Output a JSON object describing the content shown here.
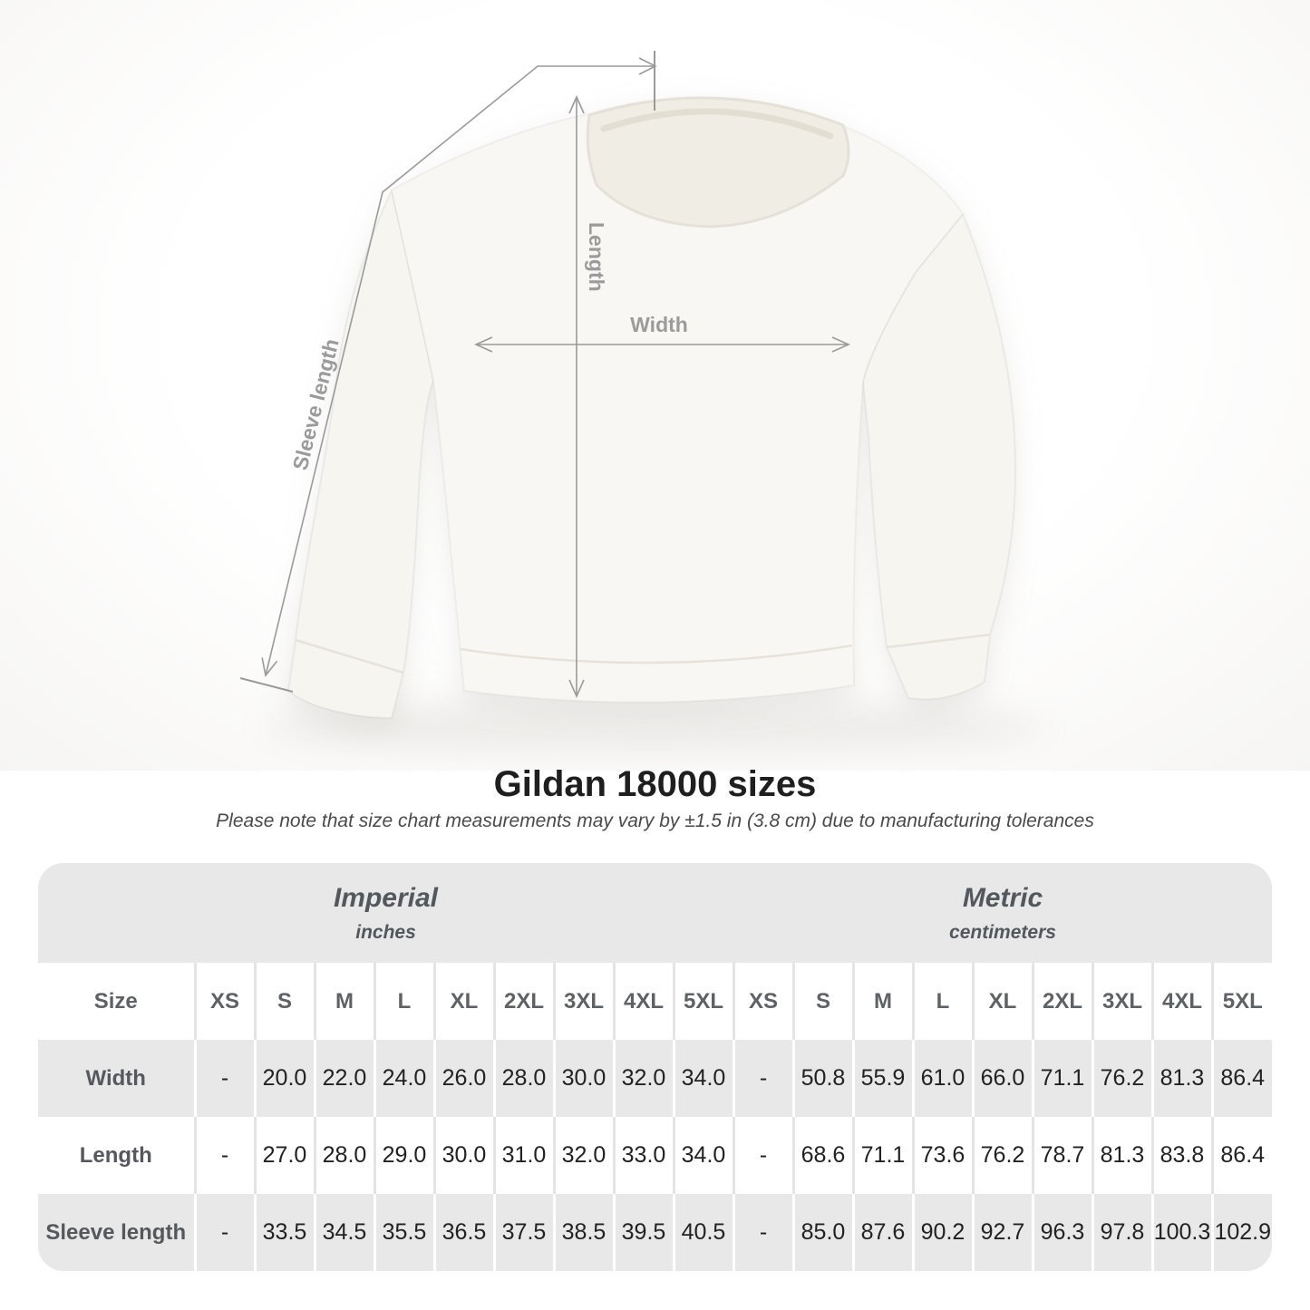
{
  "heading": {
    "title": "Gildan 18000 sizes",
    "note": "Please note that size chart measurements may vary by ±1.5 in (3.8 cm) due to manufacturing tolerances"
  },
  "diagram": {
    "labels": {
      "length": "Length",
      "width": "Width",
      "sleeve_length": "Sleeve length"
    },
    "line_color": "#9a9a9a",
    "label_color": "#9b9b9b",
    "garment": "white crewneck sweatshirt, front view"
  },
  "table": {
    "size_label": "Size",
    "unit_groups": [
      {
        "name": "Imperial",
        "unit": "inches"
      },
      {
        "name": "Metric",
        "unit": "centimeters"
      }
    ],
    "sizes": [
      "XS",
      "S",
      "M",
      "L",
      "XL",
      "2XL",
      "3XL",
      "4XL",
      "5XL"
    ],
    "rows": [
      {
        "label": "Width",
        "imperial": [
          "-",
          "20.0",
          "22.0",
          "24.0",
          "26.0",
          "28.0",
          "30.0",
          "32.0",
          "34.0"
        ],
        "metric": [
          "-",
          "50.8",
          "55.9",
          "61.0",
          "66.0",
          "71.1",
          "76.2",
          "81.3",
          "86.4"
        ]
      },
      {
        "label": "Length",
        "imperial": [
          "-",
          "27.0",
          "28.0",
          "29.0",
          "30.0",
          "31.0",
          "32.0",
          "33.0",
          "34.0"
        ],
        "metric": [
          "-",
          "68.6",
          "71.1",
          "73.6",
          "76.2",
          "78.7",
          "81.3",
          "83.8",
          "86.4"
        ]
      },
      {
        "label": "Sleeve length",
        "imperial": [
          "-",
          "33.5",
          "34.5",
          "35.5",
          "36.5",
          "37.5",
          "38.5",
          "39.5",
          "40.5"
        ],
        "metric": [
          "-",
          "85.0",
          "87.6",
          "90.2",
          "92.7",
          "96.3",
          "97.8",
          "100.3",
          "102.9"
        ]
      }
    ],
    "colors": {
      "band_bg": "#e9e8e8",
      "row_alt_bg": "#e9e8e8",
      "row_bg": "#ffffff",
      "divider_on_white": "#e4e4e4",
      "divider_on_gray": "#ffffff",
      "header_text": "#5e6266",
      "value_text": "#222222"
    }
  },
  "chart_data": {
    "type": "table",
    "title": "Gildan 18000 sizes",
    "note": "Please note that size chart measurements may vary by ±1.5 in (3.8 cm) due to manufacturing tolerances",
    "column_groups": [
      {
        "name": "Imperial",
        "unit": "inches"
      },
      {
        "name": "Metric",
        "unit": "centimeters"
      }
    ],
    "columns": [
      "XS",
      "S",
      "M",
      "L",
      "XL",
      "2XL",
      "3XL",
      "4XL",
      "5XL"
    ],
    "rows": [
      {
        "label": "Width",
        "imperial": [
          null,
          20.0,
          22.0,
          24.0,
          26.0,
          28.0,
          30.0,
          32.0,
          34.0
        ],
        "metric": [
          null,
          50.8,
          55.9,
          61.0,
          66.0,
          71.1,
          76.2,
          81.3,
          86.4
        ]
      },
      {
        "label": "Length",
        "imperial": [
          null,
          27.0,
          28.0,
          29.0,
          30.0,
          31.0,
          32.0,
          33.0,
          34.0
        ],
        "metric": [
          null,
          68.6,
          71.1,
          73.6,
          76.2,
          78.7,
          81.3,
          83.8,
          86.4
        ]
      },
      {
        "label": "Sleeve length",
        "imperial": [
          null,
          33.5,
          34.5,
          35.5,
          36.5,
          37.5,
          38.5,
          39.5,
          40.5
        ],
        "metric": [
          null,
          85.0,
          87.6,
          90.2,
          92.7,
          96.3,
          97.8,
          100.3,
          102.9
        ]
      }
    ]
  }
}
